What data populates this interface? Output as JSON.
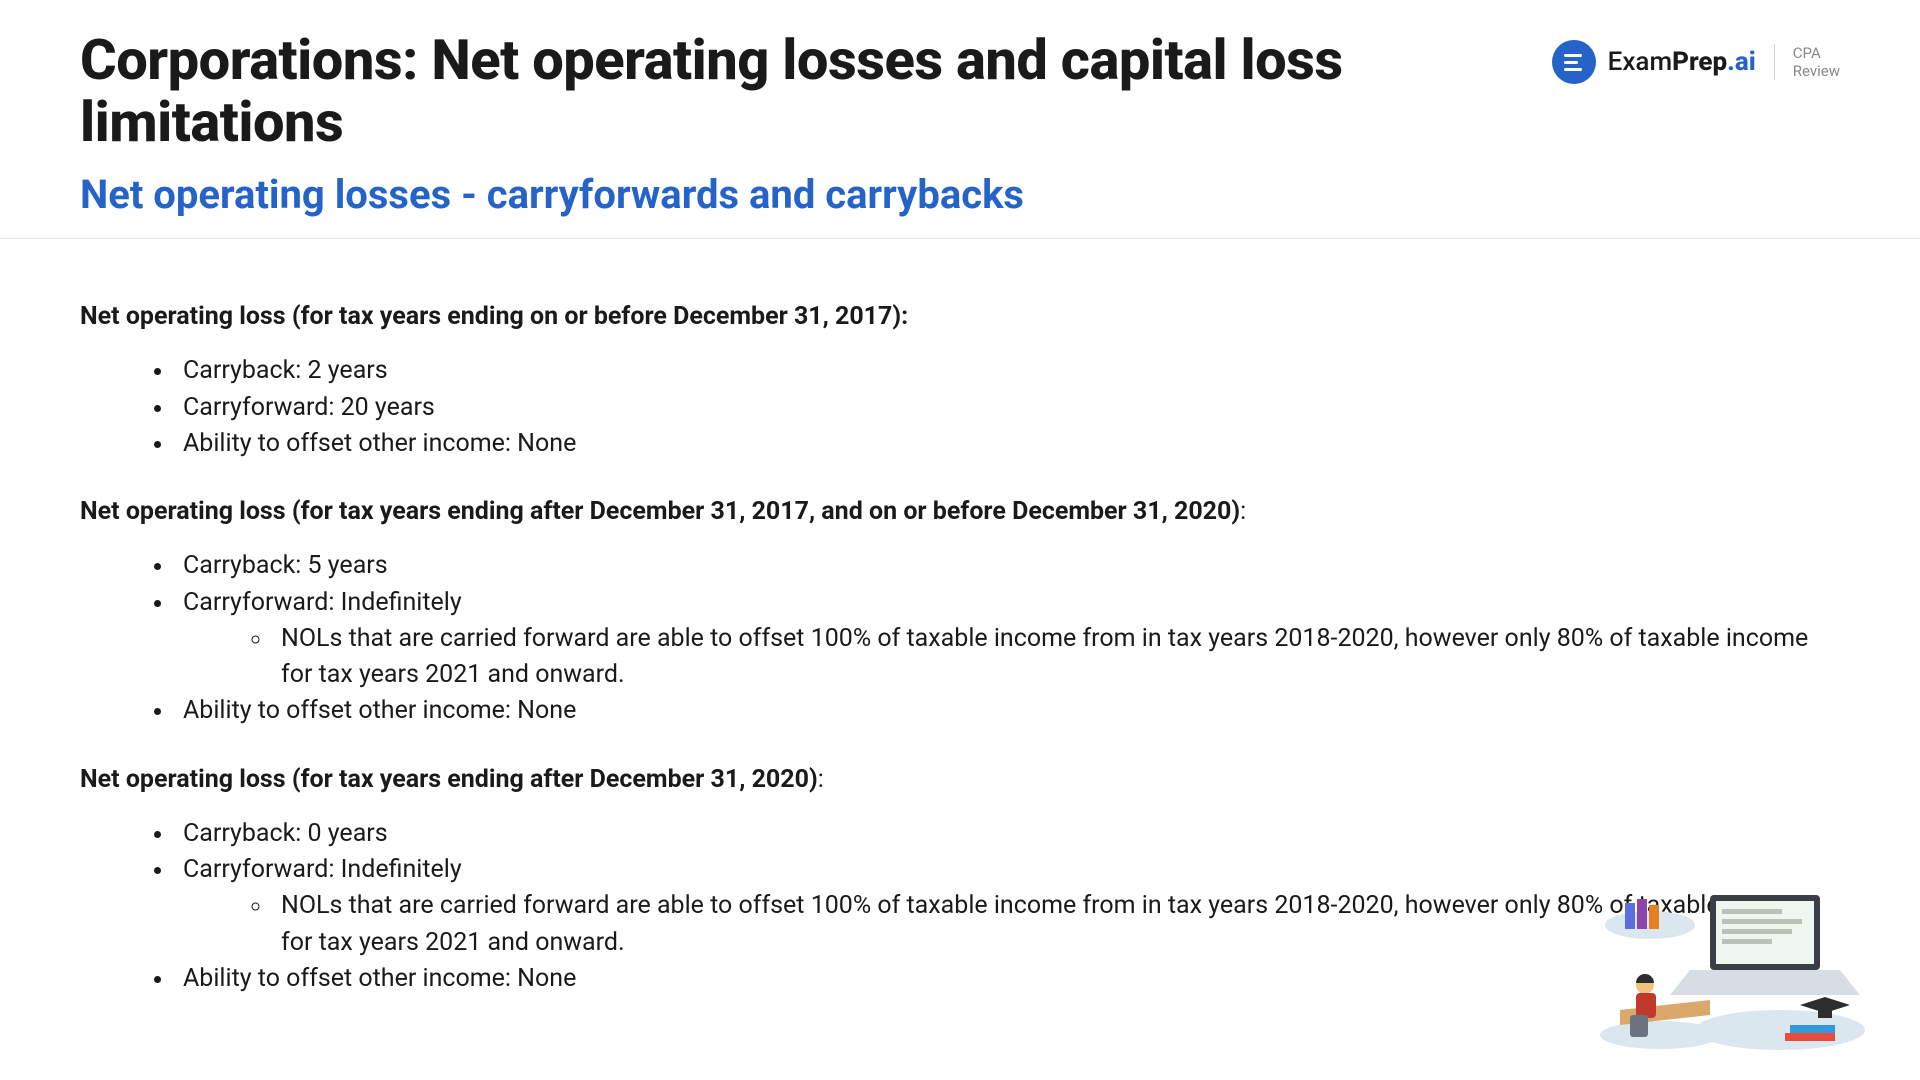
{
  "colors": {
    "text": "#1a1a1a",
    "accent": "#2563c9",
    "border": "#e5e5e5",
    "muted": "#888888",
    "bg": "#ffffff"
  },
  "header": {
    "title": "Corporations: Net operating losses and capital loss limitations",
    "subtitle": "Net operating losses - carryforwards and carrybacks"
  },
  "brand": {
    "name_part1": "Exam",
    "name_part2": "Prep",
    "name_part3": ".ai",
    "tagline_line1": "CPA",
    "tagline_line2": "Review"
  },
  "sections": [
    {
      "heading": "Net operating loss (for tax years ending on or before December 31, 2017):",
      "bullets": [
        {
          "text": "Carryback: 2 years"
        },
        {
          "text": "Carryforward: 20 years"
        },
        {
          "text": "Ability to offset other income: None"
        }
      ]
    },
    {
      "heading": "Net operating loss (for tax years ending after December 31, 2017, and on or before December 31, 2020):",
      "heading_trailing_colon_outside": ":",
      "bullets": [
        {
          "text": "Carryback: 5 years"
        },
        {
          "text": "Carryforward: Indefinitely",
          "sub": [
            "NOLs that are carried forward are able to offset 100% of taxable income from in tax years 2018-2020, however only 80% of taxable income for tax years 2021 and onward."
          ]
        },
        {
          "text": "Ability to offset other income: None"
        }
      ]
    },
    {
      "heading": "Net operating loss (for tax years ending after December 31, 2020):",
      "heading_trailing_colon_outside": ":",
      "bullets": [
        {
          "text": "Carryback: 0 years"
        },
        {
          "text": "Carryforward: Indefinitely",
          "sub": [
            "NOLs that are carried forward are able to offset 100% of taxable income from in tax years 2018-2020, however only 80% of taxable income for tax years 2021 and onward."
          ]
        },
        {
          "text": "Ability to offset other income: None"
        }
      ]
    }
  ],
  "illustration": {
    "laptop_body": "#d8dde3",
    "laptop_screen_border": "#3a3f45",
    "laptop_screen": "#eef6ef",
    "laptop_lines": "#b9c2b9",
    "desk": "#d9a86a",
    "person_shirt": "#c0392b",
    "person_hair": "#2d2d2d",
    "chair": "#6b7280",
    "books1": [
      "#5b6ee1",
      "#8e44ad",
      "#e67e22"
    ],
    "books2": [
      "#e74c3c",
      "#3498db"
    ],
    "cloud": "#dbe7ef",
    "cap": "#2d2d2d"
  }
}
